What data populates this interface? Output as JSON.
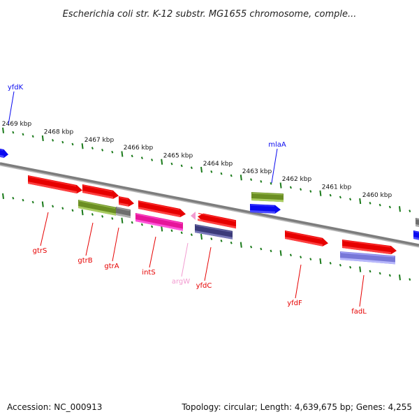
{
  "title": "Escherichia coli str. K-12 substr. MG1655 chromosome, comple...",
  "footer": {
    "accession": "Accession: NC_000913",
    "summary": "Topology: circular; Length: 4,639,675 bp; Genes: 4,255"
  },
  "scale_ticks": [
    "2469 kbp",
    "2468 kbp",
    "2467 kbp",
    "2466 kbp",
    "2465 kbp",
    "2464 kbp",
    "2463 kbp",
    "2462 kbp",
    "2461 kbp",
    "2460 kbp"
  ],
  "colors": {
    "red": "#e60000",
    "olive": "#6b8e23",
    "blue": "#0a0af0",
    "magenta": "#e6169a",
    "navy": "#3b3b7a",
    "slate": "#7878d8",
    "pink": "#f29ad0",
    "gray": "#6e6e6e",
    "tick_green": "#1a7a1a",
    "backbone": "#7d7d7d"
  },
  "genes": [
    {
      "name": "yfdK",
      "color": "blue"
    },
    {
      "name": "gtrS",
      "color": "red"
    },
    {
      "name": "gtrB",
      "color": "red"
    },
    {
      "name": "gtrA",
      "color": "red"
    },
    {
      "name": "intS",
      "color": "red"
    },
    {
      "name": "argW",
      "color": "pink"
    },
    {
      "name": "yfdC",
      "color": "red"
    },
    {
      "name": "mlaA",
      "color": "blue"
    },
    {
      "name": "yfdF",
      "color": "red"
    },
    {
      "name": "fadL",
      "color": "red"
    }
  ]
}
